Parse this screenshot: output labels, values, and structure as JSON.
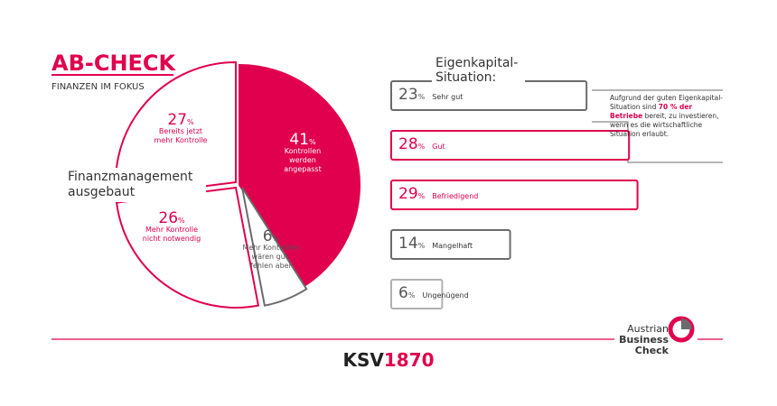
{
  "header": {
    "title": "AB-CHECK",
    "subtitle": "FINANZEN IM FOKUS"
  },
  "chart_data": [
    {
      "type": "pie",
      "title": "Finanzmanagement ausgebaut",
      "unit": "%",
      "categories": [
        "Kontrollen werden angepasst",
        "Mehr Kontrollen wären gut, fehlen aber",
        "Mehr Kontrolle nicht notwendig",
        "Bereits jetzt mehr Kontrolle"
      ],
      "values": [
        41,
        6,
        26,
        27
      ],
      "colors": [
        "#e0004d",
        "#6b6b6b",
        "#e0004d",
        "#e0004d"
      ]
    },
    {
      "type": "bar",
      "title": "Eigenkapital-Situation:",
      "unit": "%",
      "categories": [
        "Sehr gut",
        "Gut",
        "Befriedigend",
        "Mangelhaft",
        "Ungenügend"
      ],
      "values": [
        23,
        28,
        29,
        14,
        6
      ],
      "colors": [
        "#6b6b6b",
        "#e0004d",
        "#e0004d",
        "#6b6b6b",
        "#b0b0b0"
      ]
    }
  ],
  "annotation": {
    "parts": [
      "Aufgrund der guten Eigenkapital-Situation sind ",
      "70 % der Betriebe",
      " bereit, zu investieren, wenn es die wirtschaftliche Situation erlaubt."
    ]
  },
  "footer": {
    "brand_main": "KSV",
    "brand_number": "1870",
    "logo": [
      "Austrian",
      "Business",
      "Check"
    ]
  }
}
